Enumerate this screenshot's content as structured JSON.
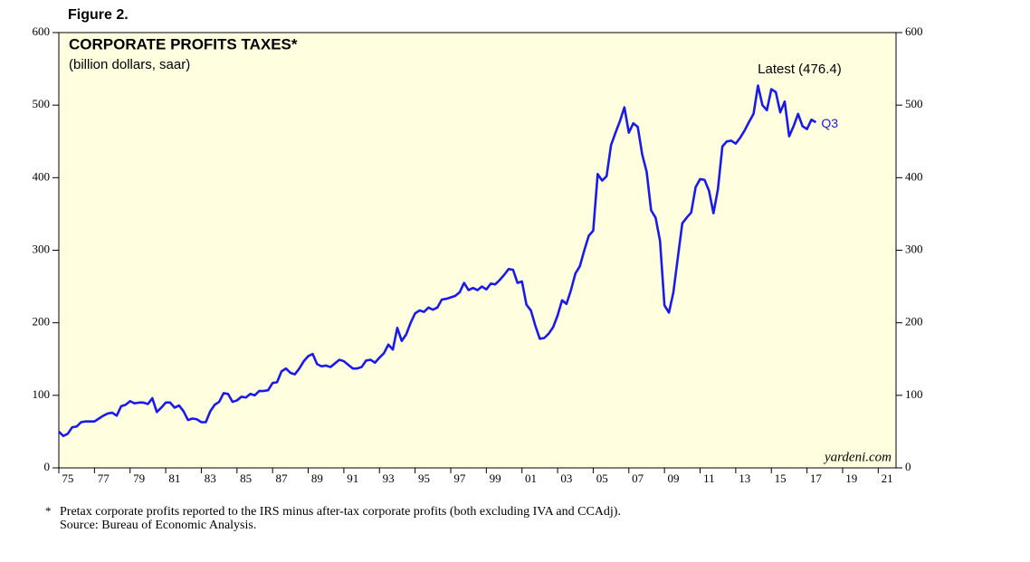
{
  "chart_data": {
    "type": "line",
    "figure_label": "Figure 2.",
    "title": "CORPORATE PROFITS TAXES*",
    "subtitle": "(billion dollars, saar)",
    "annotations": [
      "Latest (476.4)",
      "Q3"
    ],
    "watermark": "yardeni.com",
    "footnote_marker": "*",
    "footnotes": [
      "Pretax corporate profits reported to the IRS minus after-tax corporate profits (both excluding IVA and CCAdj).",
      "Source: Bureau of Economic Analysis."
    ],
    "xlim": [
      1975,
      2022
    ],
    "ylim": [
      0,
      600
    ],
    "yticks": [
      0,
      100,
      200,
      300,
      400,
      500,
      600
    ],
    "xticks": [
      {
        "value": 1975,
        "label": "75"
      },
      {
        "value": 1977,
        "label": "77"
      },
      {
        "value": 1979,
        "label": "79"
      },
      {
        "value": 1981,
        "label": "81"
      },
      {
        "value": 1983,
        "label": "83"
      },
      {
        "value": 1985,
        "label": "85"
      },
      {
        "value": 1987,
        "label": "87"
      },
      {
        "value": 1989,
        "label": "89"
      },
      {
        "value": 1991,
        "label": "91"
      },
      {
        "value": 1993,
        "label": "93"
      },
      {
        "value": 1995,
        "label": "95"
      },
      {
        "value": 1997,
        "label": "97"
      },
      {
        "value": 1999,
        "label": "99"
      },
      {
        "value": 2001,
        "label": "01"
      },
      {
        "value": 2003,
        "label": "03"
      },
      {
        "value": 2005,
        "label": "05"
      },
      {
        "value": 2007,
        "label": "07"
      },
      {
        "value": 2009,
        "label": "09"
      },
      {
        "value": 2011,
        "label": "11"
      },
      {
        "value": 2013,
        "label": "13"
      },
      {
        "value": 2015,
        "label": "15"
      },
      {
        "value": 2017,
        "label": "17"
      },
      {
        "value": 2019,
        "label": "19"
      },
      {
        "value": 2021,
        "label": "21"
      }
    ],
    "background": "#ffffe0",
    "x": [
      1975,
      1975.25,
      1975.5,
      1975.75,
      1976,
      1976.25,
      1976.5,
      1976.75,
      1977,
      1977.25,
      1977.5,
      1977.75,
      1978,
      1978.25,
      1978.5,
      1978.75,
      1979,
      1979.25,
      1979.5,
      1979.75,
      1980,
      1980.25,
      1980.5,
      1980.75,
      1981,
      1981.25,
      1981.5,
      1981.75,
      1982,
      1982.25,
      1982.5,
      1982.75,
      1983,
      1983.25,
      1983.5,
      1983.75,
      1984,
      1984.25,
      1984.5,
      1984.75,
      1985,
      1985.25,
      1985.5,
      1985.75,
      1986,
      1986.25,
      1986.5,
      1986.75,
      1987,
      1987.25,
      1987.5,
      1987.75,
      1988,
      1988.25,
      1988.5,
      1988.75,
      1989,
      1989.25,
      1989.5,
      1989.75,
      1990,
      1990.25,
      1990.5,
      1990.75,
      1991,
      1991.25,
      1991.5,
      1991.75,
      1992,
      1992.25,
      1992.5,
      1992.75,
      1993,
      1993.25,
      1993.5,
      1993.75,
      1994,
      1994.25,
      1994.5,
      1994.75,
      1995,
      1995.25,
      1995.5,
      1995.75,
      1996,
      1996.25,
      1996.5,
      1996.75,
      1997,
      1997.25,
      1997.5,
      1997.75,
      1998,
      1998.25,
      1998.5,
      1998.75,
      1999,
      1999.25,
      1999.5,
      1999.75,
      2000,
      2000.25,
      2000.5,
      2000.75,
      2001,
      2001.25,
      2001.5,
      2001.75,
      2002,
      2002.25,
      2002.5,
      2002.75,
      2003,
      2003.25,
      2003.5,
      2003.75,
      2004,
      2004.25,
      2004.5,
      2004.75,
      2005,
      2005.25,
      2005.5,
      2005.75,
      2006,
      2006.25,
      2006.5,
      2006.75,
      2007,
      2007.25,
      2007.5,
      2007.75,
      2008,
      2008.25,
      2008.5,
      2008.75,
      2009,
      2009.25,
      2009.5,
      2009.75,
      2010,
      2010.25,
      2010.5,
      2010.75,
      2011,
      2011.25,
      2011.5,
      2011.75,
      2012,
      2012.25,
      2012.5,
      2012.75,
      2013,
      2013.25,
      2013.5,
      2013.75,
      2014,
      2014.25,
      2014.5,
      2014.75,
      2015,
      2015.25,
      2015.5,
      2015.75,
      2016,
      2016.25,
      2016.5,
      2016.75,
      2017,
      2017.25,
      2017.5
    ],
    "series": [
      {
        "color": "#1a1aee",
        "values": [
          50,
          44,
          47,
          56,
          57,
          63,
          64,
          64,
          64,
          68,
          72,
          75,
          76,
          72,
          85,
          87,
          92,
          89,
          90,
          90,
          88,
          96,
          77,
          83,
          90,
          90,
          83,
          86,
          78,
          66,
          68,
          67,
          63,
          63,
          78,
          87,
          91,
          103,
          102,
          91,
          93,
          98,
          97,
          102,
          100,
          106,
          106,
          107,
          117,
          118,
          133,
          137,
          131,
          129,
          137,
          147,
          154,
          157,
          143,
          140,
          141,
          139,
          144,
          149,
          147,
          142,
          137,
          137,
          139,
          148,
          149,
          145,
          152,
          158,
          170,
          163,
          193,
          175,
          184,
          200,
          213,
          217,
          215,
          221,
          218,
          221,
          232,
          233,
          235,
          237,
          242,
          255,
          245,
          248,
          245,
          250,
          246,
          254,
          253,
          259,
          266,
          274,
          273,
          255,
          257,
          225,
          217,
          196,
          178,
          179,
          185,
          194,
          210,
          231,
          226,
          245,
          268,
          278,
          300,
          320,
          327,
          405,
          396,
          402,
          445,
          462,
          478,
          497,
          462,
          475,
          470,
          432,
          408,
          355,
          345,
          313,
          224,
          214,
          242,
          290,
          337,
          345,
          352,
          387,
          398,
          397,
          382,
          351,
          384,
          443,
          450,
          451,
          447,
          455,
          465,
          477,
          488,
          527,
          500,
          493,
          522,
          518,
          490,
          505,
          457,
          471,
          488,
          471,
          467,
          480,
          476.4
        ]
      }
    ]
  }
}
